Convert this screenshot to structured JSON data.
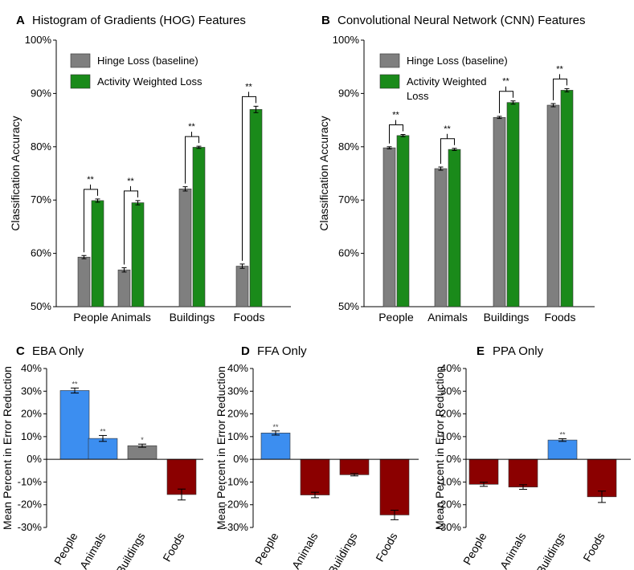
{
  "colors": {
    "baseline": "#7f7f7f",
    "activity": "#1a8a1a",
    "positive": "#3c8ef0",
    "negative": "#8b0000",
    "neutral": "#808080"
  },
  "chart_data": [
    {
      "id": "A",
      "panel_label": "A",
      "type": "bar",
      "title": "Histogram of Gradients (HOG) Features",
      "ylabel": "Classification Accuracy",
      "xlabel": "",
      "ylim": [
        50,
        100
      ],
      "yticks": [
        {
          "v": 50,
          "label": "50%"
        },
        {
          "v": 60,
          "label": "60%"
        },
        {
          "v": 70,
          "label": "70%"
        },
        {
          "v": 80,
          "label": "80%"
        },
        {
          "v": 90,
          "label": "90%"
        },
        {
          "v": 100,
          "label": "100%"
        }
      ],
      "categories": [
        "People",
        "Animals",
        "Buildings",
        "Foods"
      ],
      "series": [
        {
          "name": "Hinge Loss (baseline)",
          "color": "#7f7f7f",
          "values": [
            59.3,
            56.9,
            72.1,
            57.6
          ],
          "errors": [
            0.3,
            0.4,
            0.4,
            0.4
          ]
        },
        {
          "name": "Activity Weighted Loss",
          "color": "#1a8a1a",
          "values": [
            69.9,
            69.5,
            79.9,
            87.0
          ],
          "errors": [
            0.3,
            0.4,
            0.2,
            0.6
          ]
        }
      ],
      "significance": [
        "**",
        "**",
        "**",
        "**"
      ],
      "legend_position": "top-left"
    },
    {
      "id": "B",
      "panel_label": "B",
      "type": "bar",
      "title": "Convolutional Neural Network (CNN) Features",
      "ylabel": "Classification Accuracy",
      "xlabel": "",
      "ylim": [
        50,
        100
      ],
      "yticks": [
        {
          "v": 50,
          "label": "50%"
        },
        {
          "v": 60,
          "label": "60%"
        },
        {
          "v": 70,
          "label": "70%"
        },
        {
          "v": 80,
          "label": "80%"
        },
        {
          "v": 90,
          "label": "90%"
        },
        {
          "v": 100,
          "label": "100%"
        }
      ],
      "categories": [
        "People",
        "Animals",
        "Buildings",
        "Foods"
      ],
      "series": [
        {
          "name": "Hinge Loss (baseline)",
          "color": "#7f7f7f",
          "values": [
            79.8,
            75.9,
            85.5,
            87.8
          ],
          "errors": [
            0.2,
            0.3,
            0.2,
            0.3
          ]
        },
        {
          "name": "Activity Weighted Loss",
          "color": "#1a8a1a",
          "values": [
            82.1,
            79.5,
            88.3,
            90.6
          ],
          "errors": [
            0.2,
            0.2,
            0.3,
            0.3
          ]
        }
      ],
      "significance": [
        "**",
        "**",
        "**",
        "**"
      ],
      "legend_position": "top-left",
      "legend_labels": [
        "Hinge Loss (baseline)",
        "Activity Weighted",
        "Loss"
      ]
    },
    {
      "id": "C",
      "panel_label": "C",
      "type": "bar",
      "title": "EBA Only",
      "ylabel": "Mean Percent in Error Reduction",
      "xlabel": "",
      "ylim": [
        -30,
        40
      ],
      "yticks": [
        {
          "v": -30,
          "label": "-30%"
        },
        {
          "v": -20,
          "label": "-20%"
        },
        {
          "v": -10,
          "label": "-10%"
        },
        {
          "v": 0,
          "label": "0%"
        },
        {
          "v": 10,
          "label": "10%"
        },
        {
          "v": 20,
          "label": "20%"
        },
        {
          "v": 30,
          "label": "30%"
        },
        {
          "v": 40,
          "label": "40%"
        }
      ],
      "categories": [
        "People",
        "Animals",
        "Buildings",
        "Foods"
      ],
      "values": [
        30.3,
        9.2,
        6.0,
        -15.5
      ],
      "errors": [
        1.1,
        1.3,
        0.7,
        2.4
      ],
      "bar_colors": [
        "#3c8ef0",
        "#3c8ef0",
        "#808080",
        "#8b0000"
      ],
      "significance": [
        "**",
        "**",
        "*",
        ""
      ]
    },
    {
      "id": "D",
      "panel_label": "D",
      "type": "bar",
      "title": "FFA Only",
      "ylabel": "Mean Percent in Error Reduction",
      "xlabel": "",
      "ylim": [
        -30,
        40
      ],
      "yticks": [
        {
          "v": -30,
          "label": "-30%"
        },
        {
          "v": -20,
          "label": "-20%"
        },
        {
          "v": -10,
          "label": "-10%"
        },
        {
          "v": 0,
          "label": "0%"
        },
        {
          "v": 10,
          "label": "10%"
        },
        {
          "v": 20,
          "label": "20%"
        },
        {
          "v": 30,
          "label": "30%"
        },
        {
          "v": 40,
          "label": "40%"
        }
      ],
      "categories": [
        "People",
        "Animals",
        "Buildings",
        "Foods"
      ],
      "values": [
        11.6,
        -15.7,
        -6.8,
        -24.5
      ],
      "errors": [
        0.9,
        1.2,
        0.5,
        2.1
      ],
      "bar_colors": [
        "#3c8ef0",
        "#8b0000",
        "#8b0000",
        "#8b0000"
      ],
      "significance": [
        "**",
        "",
        "",
        ""
      ]
    },
    {
      "id": "E",
      "panel_label": "E",
      "type": "bar",
      "title": "PPA Only",
      "ylabel": "Mean Percent in Error Reduction",
      "xlabel": "",
      "ylim": [
        -30,
        40
      ],
      "yticks": [
        {
          "v": -30,
          "label": "-30%"
        },
        {
          "v": -20,
          "label": "-20%"
        },
        {
          "v": -10,
          "label": "-10%"
        },
        {
          "v": 0,
          "label": "0%"
        },
        {
          "v": 10,
          "label": "10%"
        },
        {
          "v": 20,
          "label": "20%"
        },
        {
          "v": 30,
          "label": "30%"
        },
        {
          "v": 40,
          "label": "40%"
        }
      ],
      "categories": [
        "People",
        "Animals",
        "Buildings",
        "Foods"
      ],
      "values": [
        -11.0,
        -12.2,
        8.5,
        -16.5
      ],
      "errors": [
        0.9,
        1.0,
        0.6,
        2.5
      ],
      "bar_colors": [
        "#8b0000",
        "#8b0000",
        "#3c8ef0",
        "#8b0000"
      ],
      "significance": [
        "",
        "",
        "**",
        ""
      ]
    }
  ]
}
